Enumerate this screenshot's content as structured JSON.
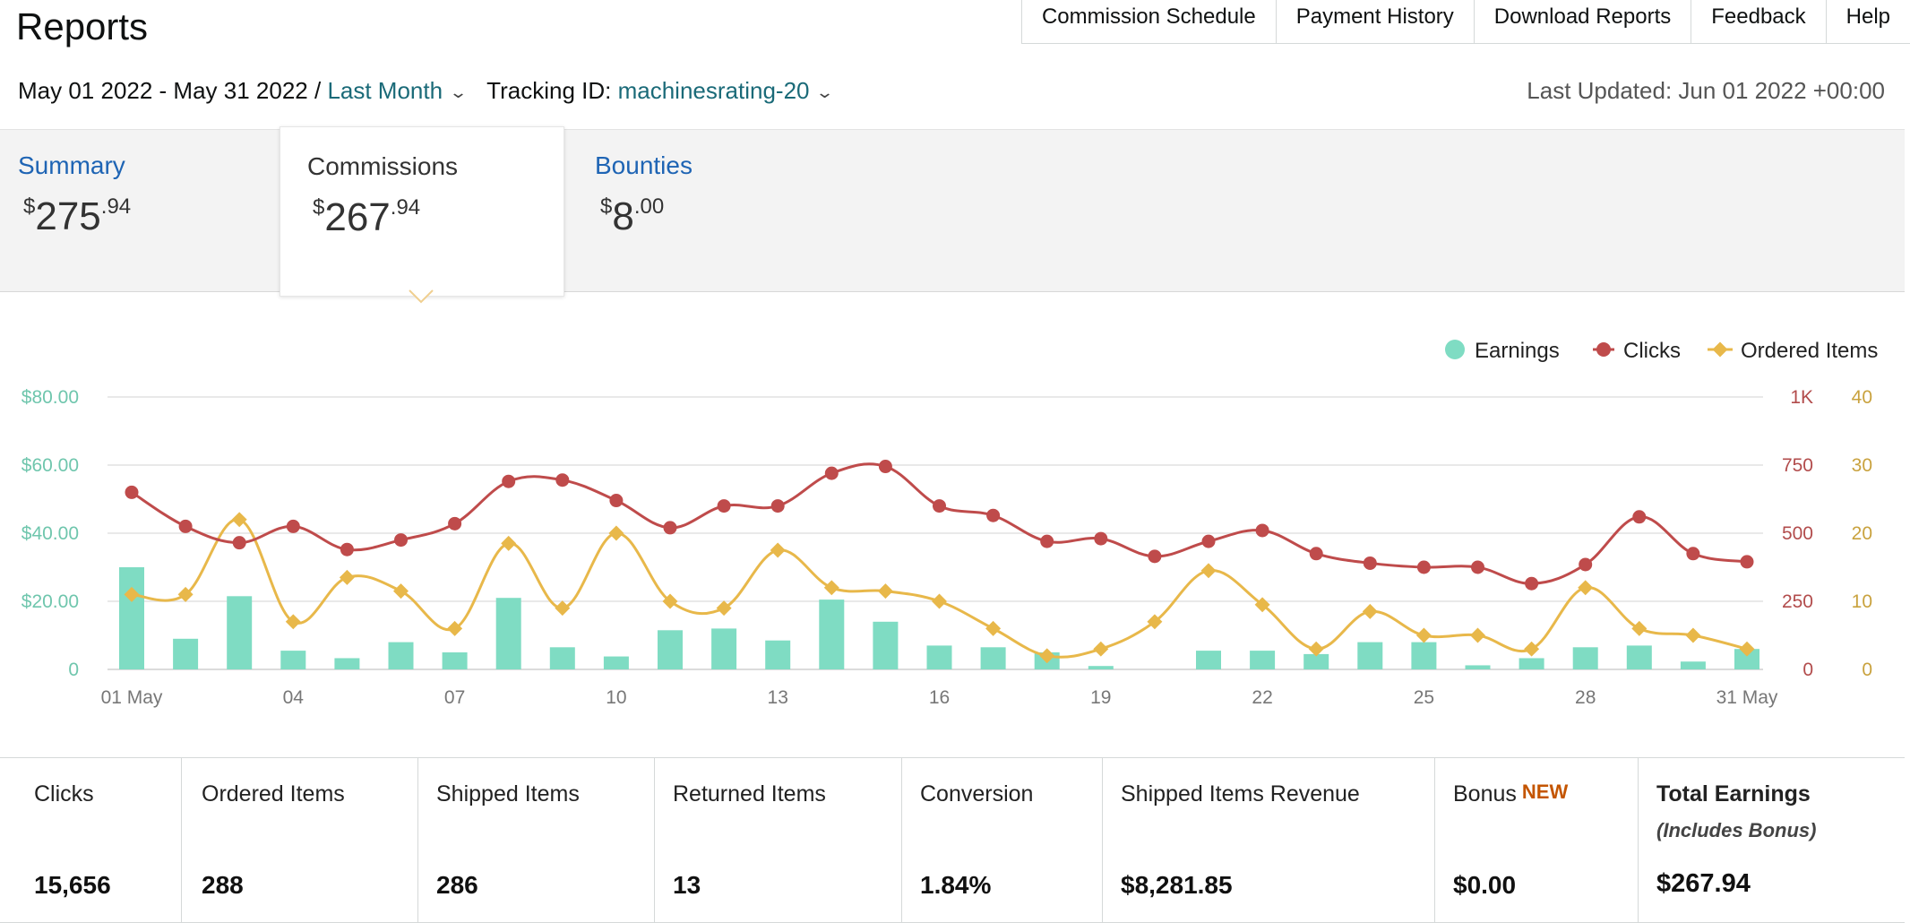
{
  "header": {
    "title": "Reports",
    "top_links": [
      "Commission Schedule",
      "Payment History",
      "Download Reports",
      "Feedback",
      "Help"
    ],
    "date_range": "May 01 2022 - May 31 2022 /",
    "period": "Last Month",
    "tracking_label": "Tracking ID:",
    "tracking_id": "machinesrating-20",
    "last_updated": "Last Updated: Jun 01 2022 +00:00"
  },
  "tabs": {
    "summary": {
      "label": "Summary",
      "currency": "$",
      "whole": "275",
      "cents": ".94"
    },
    "commissions": {
      "label": "Commissions",
      "currency": "$",
      "whole": "267",
      "cents": ".94"
    },
    "bounties": {
      "label": "Bounties",
      "currency": "$",
      "whole": "8",
      "cents": ".00"
    }
  },
  "chart_data": {
    "type": "bar+line",
    "legend": [
      "Earnings",
      "Clicks",
      "Ordered Items"
    ],
    "colors": {
      "earnings": "#7fdcc3",
      "clicks": "#bf4b4b",
      "ordered": "#e8b84a"
    },
    "y_left": {
      "ticks": [
        "0",
        "$20.00",
        "$40.00",
        "$60.00",
        "$80.00"
      ],
      "range": [
        0,
        80
      ]
    },
    "y_clicks": {
      "ticks": [
        "0",
        "250",
        "500",
        "750",
        "1K"
      ],
      "range": [
        0,
        1000
      ]
    },
    "y_ordered": {
      "ticks": [
        "0",
        "10",
        "20",
        "30",
        "40"
      ],
      "range": [
        0,
        40
      ]
    },
    "x_tick_labels": [
      "01 May",
      "04",
      "07",
      "10",
      "13",
      "16",
      "19",
      "22",
      "25",
      "28",
      "31 May"
    ],
    "x_tick_days": [
      1,
      4,
      7,
      10,
      13,
      16,
      19,
      22,
      25,
      28,
      31
    ],
    "days": [
      1,
      2,
      3,
      4,
      5,
      6,
      7,
      8,
      9,
      10,
      11,
      12,
      13,
      14,
      15,
      16,
      17,
      18,
      19,
      20,
      21,
      22,
      23,
      24,
      25,
      26,
      27,
      28,
      29,
      30,
      31
    ],
    "series": [
      {
        "name": "Earnings",
        "unit": "$",
        "values": [
          30.0,
          9.0,
          21.5,
          5.5,
          3.3,
          8.0,
          5.0,
          21.0,
          6.5,
          3.8,
          11.5,
          12.0,
          8.5,
          20.5,
          14.0,
          7.0,
          6.5,
          5.0,
          1.0,
          0,
          5.5,
          5.5,
          4.5,
          8.0,
          8.0,
          1.2,
          3.3,
          6.5,
          7.0,
          2.3,
          6.0
        ]
      },
      {
        "name": "Clicks",
        "values": [
          650,
          525,
          465,
          525,
          440,
          475,
          535,
          690,
          695,
          620,
          520,
          600,
          600,
          720,
          745,
          600,
          565,
          470,
          480,
          415,
          470,
          510,
          425,
          390,
          375,
          375,
          315,
          385,
          560,
          425,
          395
        ]
      },
      {
        "name": "Ordered Items",
        "values": [
          11,
          11,
          22,
          7,
          13.5,
          11.5,
          6,
          18.5,
          9,
          20,
          10,
          9,
          17.5,
          12,
          11.5,
          10,
          6,
          2,
          3,
          7,
          14.5,
          9.5,
          3,
          8.5,
          5,
          5,
          3,
          12,
          6,
          5,
          3
        ]
      }
    ]
  },
  "stats": [
    {
      "label": "Clicks",
      "value": "15,656"
    },
    {
      "label": "Ordered Items",
      "value": "288"
    },
    {
      "label": "Shipped Items",
      "value": "286"
    },
    {
      "label": "Returned Items",
      "value": "13"
    },
    {
      "label": "Conversion",
      "value": "1.84%"
    },
    {
      "label": "Shipped Items Revenue",
      "value": "$8,281.85"
    },
    {
      "label": "Bonus",
      "badge": "NEW",
      "value": "$0.00"
    },
    {
      "label": "Total Earnings",
      "sublabel": "(Includes Bonus)",
      "value": "$267.94"
    }
  ]
}
